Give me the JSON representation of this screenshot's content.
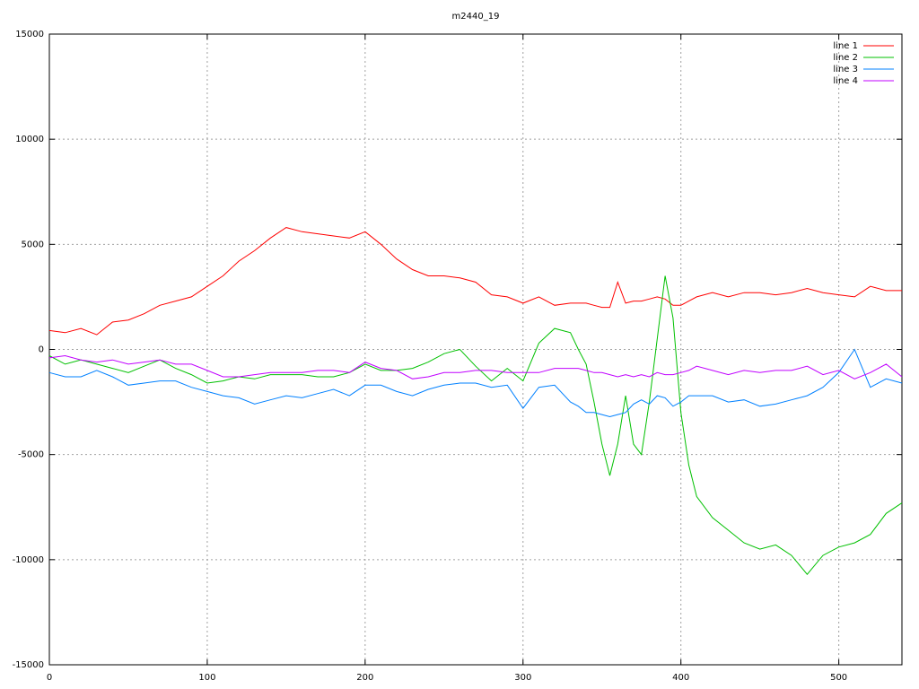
{
  "chart_data": {
    "type": "line",
    "title": "m2440_19",
    "x": [
      0,
      10,
      20,
      30,
      40,
      50,
      60,
      70,
      80,
      90,
      100,
      110,
      120,
      130,
      140,
      150,
      160,
      170,
      180,
      190,
      200,
      210,
      220,
      230,
      240,
      250,
      260,
      270,
      280,
      290,
      300,
      310,
      320,
      330,
      335,
      340,
      345,
      350,
      355,
      360,
      365,
      370,
      375,
      380,
      385,
      390,
      395,
      400,
      405,
      410,
      420,
      430,
      440,
      450,
      460,
      470,
      480,
      490,
      500,
      510,
      520,
      530,
      540
    ],
    "series": [
      {
        "name": "line 1",
        "color": "#ff0000",
        "values": [
          900,
          800,
          1000,
          700,
          1300,
          1400,
          1700,
          2100,
          2300,
          2500,
          3000,
          3500,
          4200,
          4700,
          5300,
          5800,
          5600,
          5500,
          5400,
          5300,
          5600,
          5000,
          4300,
          3800,
          3500,
          3500,
          3400,
          3200,
          2600,
          2500,
          2200,
          2500,
          2100,
          2200,
          2200,
          2200,
          2100,
          2000,
          2000,
          3200,
          2200,
          2300,
          2300,
          2400,
          2500,
          2400,
          2100,
          2100,
          2300,
          2500,
          2700,
          2500,
          2700,
          2700,
          2600,
          2700,
          2900,
          2700,
          2600,
          2500,
          3000,
          2800,
          2800
        ]
      },
      {
        "name": "line 2",
        "color": "#00c000",
        "values": [
          -300,
          -700,
          -500,
          -700,
          -900,
          -1100,
          -800,
          -500,
          -900,
          -1200,
          -1600,
          -1500,
          -1300,
          -1400,
          -1200,
          -1200,
          -1200,
          -1300,
          -1300,
          -1100,
          -700,
          -1000,
          -1000,
          -900,
          -600,
          -200,
          0,
          -800,
          -1500,
          -900,
          -1500,
          300,
          1000,
          800,
          0,
          -700,
          -2500,
          -4500,
          -6000,
          -4500,
          -2200,
          -4500,
          -5000,
          -2500,
          500,
          3500,
          1500,
          -3000,
          -5500,
          -7000,
          -8000,
          -8600,
          -9200,
          -9500,
          -9300,
          -9800,
          -10700,
          -9800,
          -9400,
          -9200,
          -8800,
          -7800,
          -7300
        ]
      },
      {
        "name": "line 3",
        "color": "#0080ff",
        "values": [
          -1100,
          -1300,
          -1300,
          -1000,
          -1300,
          -1700,
          -1600,
          -1500,
          -1500,
          -1800,
          -2000,
          -2200,
          -2300,
          -2600,
          -2400,
          -2200,
          -2300,
          -2100,
          -1900,
          -2200,
          -1700,
          -1700,
          -2000,
          -2200,
          -1900,
          -1700,
          -1600,
          -1600,
          -1800,
          -1700,
          -2800,
          -1800,
          -1700,
          -2500,
          -2700,
          -3000,
          -3000,
          -3100,
          -3200,
          -3100,
          -3000,
          -2600,
          -2400,
          -2600,
          -2200,
          -2300,
          -2700,
          -2500,
          -2200,
          -2200,
          -2200,
          -2500,
          -2400,
          -2700,
          -2600,
          -2400,
          -2200,
          -1800,
          -1100,
          0,
          -1800,
          -1400,
          -1600
        ]
      },
      {
        "name": "line 4",
        "color": "#c000ff",
        "values": [
          -400,
          -300,
          -500,
          -600,
          -500,
          -700,
          -600,
          -500,
          -700,
          -700,
          -1000,
          -1300,
          -1300,
          -1200,
          -1100,
          -1100,
          -1100,
          -1000,
          -1000,
          -1100,
          -600,
          -900,
          -1000,
          -1400,
          -1300,
          -1100,
          -1100,
          -1000,
          -1000,
          -1100,
          -1100,
          -1100,
          -900,
          -900,
          -900,
          -1000,
          -1100,
          -1100,
          -1200,
          -1300,
          -1200,
          -1300,
          -1200,
          -1300,
          -1100,
          -1200,
          -1200,
          -1100,
          -1000,
          -800,
          -1000,
          -1200,
          -1000,
          -1100,
          -1000,
          -1000,
          -800,
          -1200,
          -1000,
          -1400,
          -1100,
          -700,
          -1300
        ]
      }
    ],
    "xlim": [
      0,
      540
    ],
    "xticks": [
      0,
      100,
      200,
      300,
      400,
      500
    ],
    "ylim": [
      -15000,
      15000
    ],
    "yticks": [
      -15000,
      -10000,
      -5000,
      0,
      5000,
      10000,
      15000
    ],
    "grid": true,
    "legend": "top-right"
  }
}
